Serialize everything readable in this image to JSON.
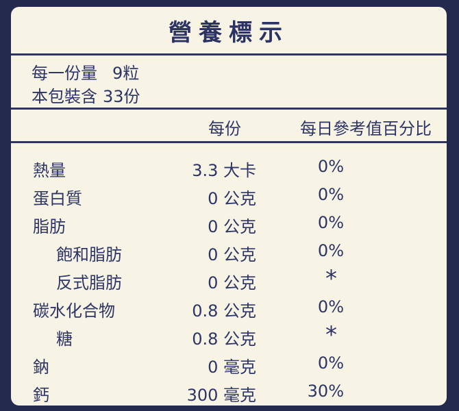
{
  "title": "營養標示",
  "serving": {
    "size_label": "每一份量",
    "size_value": "9粒",
    "count_label": "本包裝含",
    "count_value": "33份"
  },
  "columns": {
    "per_serving": "每份",
    "daily_value": "每日參考值百分比"
  },
  "nutrients": [
    {
      "name": "熱量",
      "amount": "3.3 大卡",
      "dv": "0%"
    },
    {
      "name": "蛋白質",
      "amount": "0 公克",
      "dv": "0%"
    },
    {
      "name": "脂肪",
      "amount": "0 公克",
      "dv": "0%"
    },
    {
      "name": "飽和脂肪",
      "amount": "0 公克",
      "dv": "0%"
    },
    {
      "name": "反式脂肪",
      "amount": "0 公克",
      "dv": "*"
    },
    {
      "name": "碳水化合物",
      "amount": "0.8 公克",
      "dv": "0%"
    },
    {
      "name": "糖",
      "amount": "0.8 公克",
      "dv": "*"
    },
    {
      "name": "鈉",
      "amount": "0 毫克",
      "dv": "0%"
    },
    {
      "name": "鈣",
      "amount": "300 毫克",
      "dv": "30%"
    }
  ]
}
